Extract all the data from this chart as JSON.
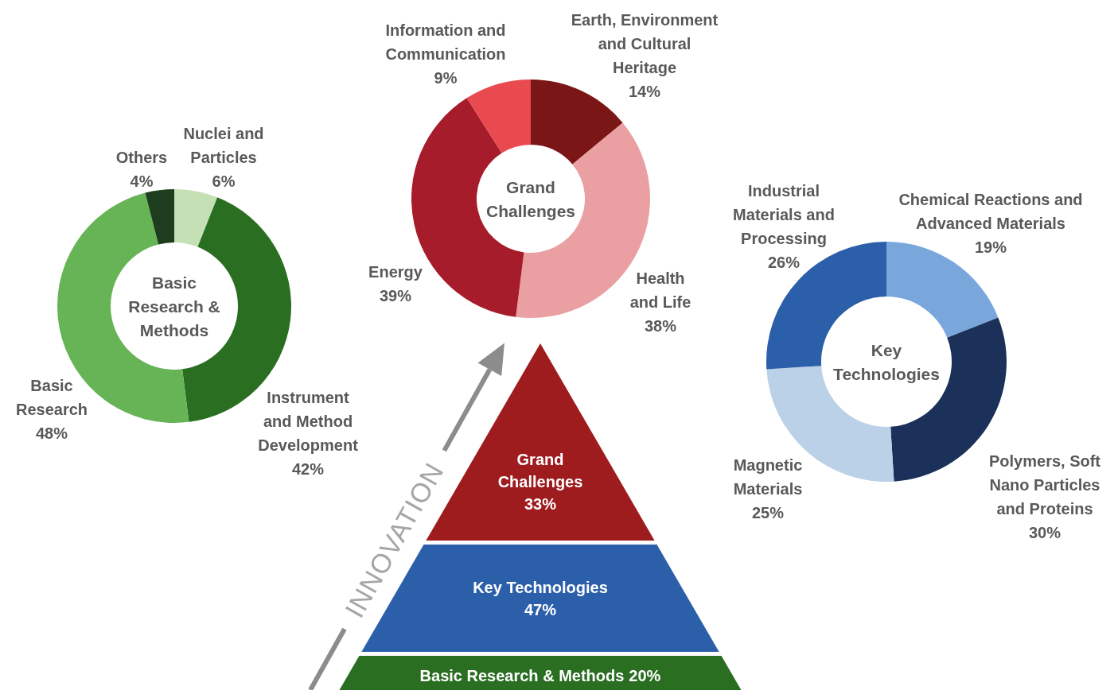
{
  "chart_data": [
    {
      "type": "donut",
      "title": "Basic Research & Methods",
      "categories": [
        "Nuclei and Particles",
        "Instrument and Method Development",
        "Basic Research",
        "Others"
      ],
      "values": [
        6,
        42,
        48,
        4
      ],
      "value_labels": [
        "6%",
        "42%",
        "48%",
        "4%"
      ],
      "colors": [
        "#c5e0b4",
        "#2a6e22",
        "#66b456",
        "#1e3d1e"
      ]
    },
    {
      "type": "donut",
      "title": "Grand Challenges",
      "categories": [
        "Earth, Environment and Cultural Heritage",
        "Health and Life",
        "Energy",
        "Information and Communication"
      ],
      "values": [
        14,
        38,
        39,
        9
      ],
      "value_labels": [
        "14%",
        "38%",
        "39%",
        "9%"
      ],
      "colors": [
        "#7b1616",
        "#eaa0a3",
        "#a61c2a",
        "#e84a50"
      ]
    },
    {
      "type": "donut",
      "title": "Key Technologies",
      "categories": [
        "Chemical Reactions and Advanced Materials",
        "Polymers, Soft Nano Particles and Proteins",
        "Magnetic Materials",
        "Industrial Materials and Processing"
      ],
      "values": [
        19,
        30,
        25,
        26
      ],
      "value_labels": [
        "19%",
        "30%",
        "25%",
        "26%"
      ],
      "colors": [
        "#7aa7db",
        "#1b3159",
        "#bad1e7",
        "#2c5faa"
      ]
    },
    {
      "type": "other",
      "categories": [
        "Grand Challenges",
        "Key Technologies",
        "Basic Research & Methods"
      ],
      "values": [
        33,
        47,
        20
      ],
      "value_labels": [
        "33%",
        "47%",
        "20%"
      ],
      "colors": [
        "#9e1b1e",
        "#2c5faa",
        "#2a6e22"
      ],
      "annotations": [
        "INNOVATION"
      ]
    }
  ]
}
